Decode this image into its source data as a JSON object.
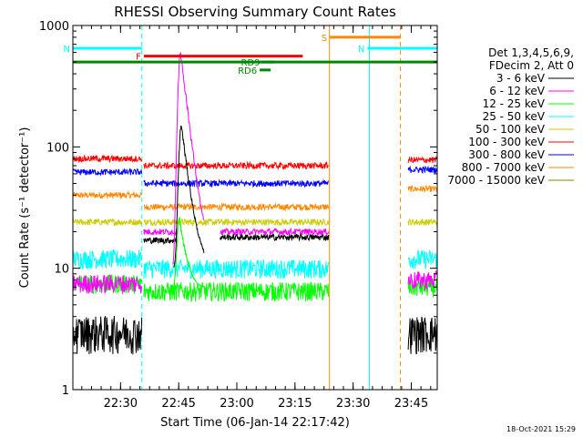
{
  "chart_data": {
    "type": "line",
    "title": "RHESSI Observing Summary Count Rates",
    "xlabel": "Start Time (06-Jan-14 22:17:42)",
    "ylabel": "Count Rate (s⁻¹ detector⁻¹)",
    "y_scale": "log",
    "ylim": [
      1,
      1000
    ],
    "y_ticks": [
      "1",
      "10",
      "100",
      "1000"
    ],
    "xlim_minutes": [
      0,
      94
    ],
    "x_ticks": [
      {
        "label": "22:30",
        "minutes": 12.3
      },
      {
        "label": "22:45",
        "minutes": 27.3
      },
      {
        "label": "23:00",
        "minutes": 42.3
      },
      {
        "label": "23:15",
        "minutes": 57.3
      },
      {
        "label": "23:30",
        "minutes": 72.3
      },
      {
        "label": "23:45",
        "minutes": 87.3
      }
    ],
    "legend_header": [
      "Det 1,3,4,5,6,9,",
      "FDecim 2, Att 0"
    ],
    "legend_position": "right",
    "series": [
      {
        "name": "3 - 6 keV",
        "color": "#000000"
      },
      {
        "name": "6 - 12 keV",
        "color": "#ff00ff"
      },
      {
        "name": "12 - 25 keV",
        "color": "#00ff00"
      },
      {
        "name": "25 - 50 keV",
        "color": "#00ffff"
      },
      {
        "name": "50 - 100 keV",
        "color": "#cccc00"
      },
      {
        "name": "100 - 300 keV",
        "color": "#ff0000"
      },
      {
        "name": "300 - 800 keV",
        "color": "#0000ff"
      },
      {
        "name": "800 - 7000 keV",
        "color": "#ff8800"
      },
      {
        "name": "7000 - 15000 keV",
        "color": "#888800"
      }
    ],
    "segments_minutes": [
      [
        0,
        17.8
      ],
      [
        18.3,
        66
      ],
      [
        86.5,
        94
      ]
    ],
    "flag_bars": [
      {
        "label": "N",
        "color": "#00ffff",
        "start": 0,
        "end": 17.8,
        "level": 650
      },
      {
        "label": "N",
        "color": "#00ffff",
        "start": 76,
        "end": 94,
        "level": 650
      },
      {
        "label": "F",
        "color": "#ff0000",
        "start": 18.3,
        "end": 59.3,
        "level": 560
      },
      {
        "label": "S",
        "color": "#ff8800",
        "start": 66.3,
        "end": 84.5,
        "level": 800
      },
      {
        "label": "RD9",
        "color": "#008800",
        "start": 49,
        "end": 52,
        "level": 500
      },
      {
        "label": "RD6",
        "color": "#008800",
        "start": 48.2,
        "end": 51,
        "level": 430
      },
      {
        "label": "",
        "color": "#008800",
        "start": 0,
        "end": 94,
        "level": 500
      }
    ],
    "vertical_markers": [
      {
        "minutes": 0,
        "color": "#00ffff",
        "style": "solid"
      },
      {
        "minutes": 17.8,
        "color": "#00ffff",
        "style": "dashed"
      },
      {
        "minutes": 66.2,
        "color": "#ff8800",
        "style": "solid"
      },
      {
        "minutes": 76.5,
        "color": "#00ffff",
        "style": "solid"
      },
      {
        "minutes": 84.5,
        "color": "#ff8800",
        "style": "dashed"
      },
      {
        "minutes": 94,
        "color": "#00ffff",
        "style": "dashed"
      }
    ],
    "baseline_levels": {
      "3 - 6 keV": [
        [
          0,
          17.8,
          3.0
        ],
        [
          18.3,
          27,
          17
        ],
        [
          38,
          66,
          18
        ],
        [
          86.5,
          94,
          3.0
        ]
      ],
      "6 - 12 keV": [
        [
          0,
          17.8,
          7.5
        ],
        [
          18.3,
          27,
          20
        ],
        [
          38,
          66,
          20
        ],
        [
          86.5,
          94,
          8
        ]
      ],
      "12 - 25 keV": [
        [
          0,
          17.8,
          7.5
        ],
        [
          18.3,
          66,
          6.5
        ],
        [
          86.5,
          94,
          7
        ]
      ],
      "25 - 50 keV": [
        [
          0,
          17.8,
          12
        ],
        [
          18.3,
          66,
          10
        ],
        [
          86.5,
          94,
          12
        ]
      ],
      "50 - 100 keV": [
        [
          0,
          17.8,
          24
        ],
        [
          18.3,
          66,
          24
        ],
        [
          86.5,
          94,
          24
        ]
      ],
      "100 - 300 keV": [
        [
          0,
          17.8,
          80
        ],
        [
          18.3,
          66,
          70
        ],
        [
          86.5,
          94,
          78
        ]
      ],
      "300 - 800 keV": [
        [
          0,
          17.8,
          62
        ],
        [
          18.3,
          66,
          50
        ],
        [
          86.5,
          94,
          65
        ]
      ],
      "800 - 7000 keV": [
        [
          0,
          17.8,
          40
        ],
        [
          18.3,
          66,
          32
        ],
        [
          86.5,
          94,
          45
        ]
      ]
    },
    "peaks": {
      "3 - 6 keV": {
        "minutes": 28,
        "value": 150
      },
      "6 - 12 keV": {
        "minutes": 27.8,
        "value": 600
      },
      "12 - 25 keV": {
        "minutes": 27.5,
        "value": 25
      }
    }
  },
  "footer": {
    "date_stamp": "18-Oct-2021 15:29"
  }
}
